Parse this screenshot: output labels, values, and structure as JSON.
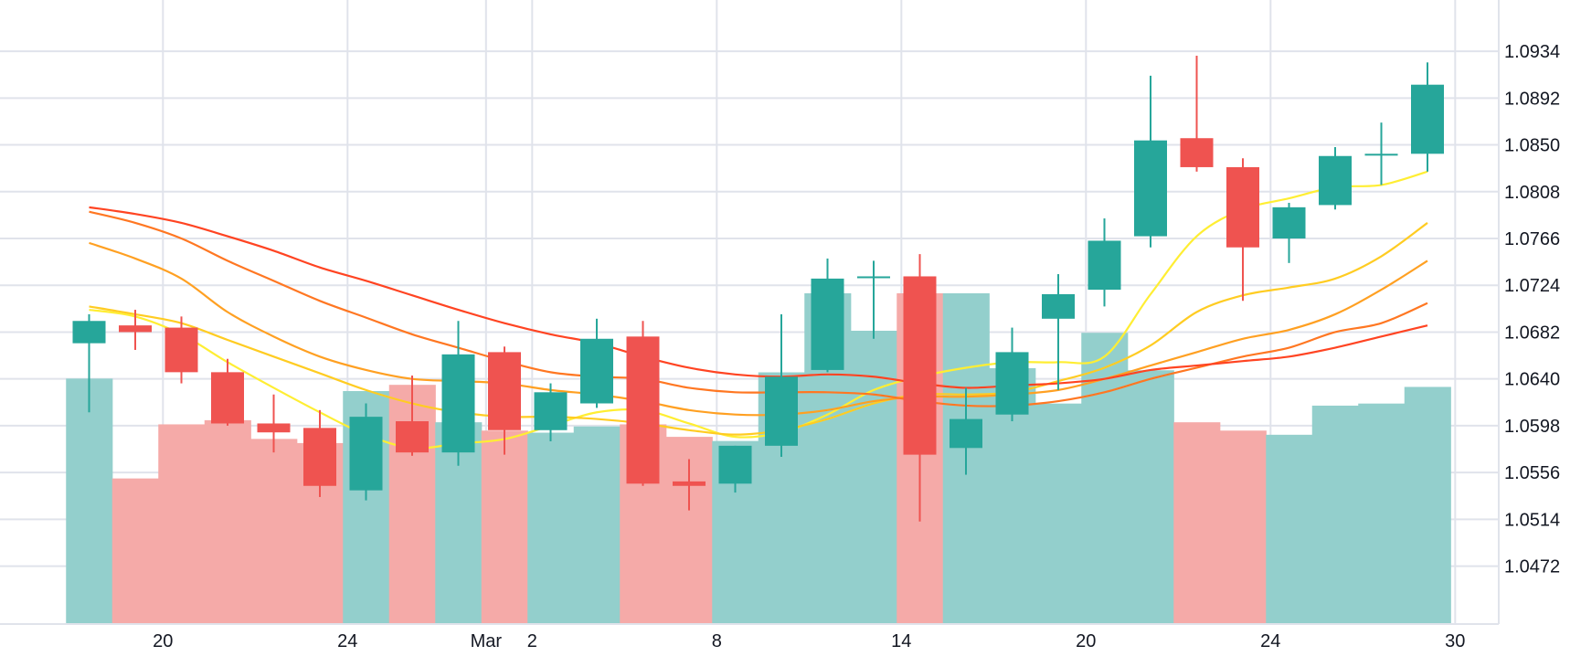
{
  "chart_data": {
    "type": "candlestick",
    "title": "",
    "xlabel": "",
    "ylabel": "",
    "y_range": [
      1.042,
      1.098
    ],
    "y_ticks": [
      "1.0934",
      "1.0892",
      "1.0850",
      "1.0808",
      "1.0766",
      "1.0724",
      "1.0682",
      "1.0640",
      "1.0598",
      "1.0556",
      "1.0514",
      "1.0472"
    ],
    "x_ticks": [
      {
        "label": "20",
        "index": 1.6
      },
      {
        "label": "24",
        "index": 5.6
      },
      {
        "label": "Mar",
        "index": 8.6
      },
      {
        "label": "2",
        "index": 9.6
      },
      {
        "label": "8",
        "index": 13.6
      },
      {
        "label": "14",
        "index": 17.6
      },
      {
        "label": "20",
        "index": 21.6
      },
      {
        "label": "24",
        "index": 25.6
      },
      {
        "label": "30",
        "index": 29.6
      }
    ],
    "grid": true,
    "colors": {
      "up": "#26a69a",
      "down": "#ef5350",
      "volume_up": "#93cfcc",
      "volume_down": "#f5aaa8",
      "grid": "#e0e3eb"
    },
    "candles": [
      {
        "open": 1.0672,
        "high": 1.0698,
        "low": 1.061,
        "close": 1.0692
      },
      {
        "open": 1.0688,
        "high": 1.0702,
        "low": 1.0666,
        "close": 1.0682
      },
      {
        "open": 1.0686,
        "high": 1.0696,
        "low": 1.0636,
        "close": 1.0646
      },
      {
        "open": 1.0646,
        "high": 1.0658,
        "low": 1.0598,
        "close": 1.06
      },
      {
        "open": 1.06,
        "high": 1.0626,
        "low": 1.0574,
        "close": 1.0592
      },
      {
        "open": 1.0596,
        "high": 1.0612,
        "low": 1.0534,
        "close": 1.0544
      },
      {
        "open": 1.054,
        "high": 1.0618,
        "low": 1.0531,
        "close": 1.0606
      },
      {
        "open": 1.0602,
        "high": 1.0643,
        "low": 1.0571,
        "close": 1.0574
      },
      {
        "open": 1.0574,
        "high": 1.0692,
        "low": 1.0562,
        "close": 1.0662
      },
      {
        "open": 1.0664,
        "high": 1.0669,
        "low": 1.0572,
        "close": 1.0594
      },
      {
        "open": 1.0594,
        "high": 1.0636,
        "low": 1.0584,
        "close": 1.0628
      },
      {
        "open": 1.0618,
        "high": 1.0694,
        "low": 1.0614,
        "close": 1.0676
      },
      {
        "open": 1.0678,
        "high": 1.0692,
        "low": 1.0544,
        "close": 1.0546
      },
      {
        "open": 1.0548,
        "high": 1.0568,
        "low": 1.0522,
        "close": 1.0544
      },
      {
        "open": 1.0546,
        "high": 1.058,
        "low": 1.0538,
        "close": 1.058
      },
      {
        "open": 1.058,
        "high": 1.0698,
        "low": 1.057,
        "close": 1.0642
      },
      {
        "open": 1.0648,
        "high": 1.0748,
        "low": 1.0646,
        "close": 1.073
      },
      {
        "open": 1.0732,
        "high": 1.0746,
        "low": 1.0676,
        "close": 1.0732
      },
      {
        "open": 1.0732,
        "high": 1.0752,
        "low": 1.0512,
        "close": 1.0572
      },
      {
        "open": 1.0578,
        "high": 1.0632,
        "low": 1.0554,
        "close": 1.0604
      },
      {
        "open": 1.0608,
        "high": 1.0686,
        "low": 1.0602,
        "close": 1.0664
      },
      {
        "open": 1.0694,
        "high": 1.0734,
        "low": 1.063,
        "close": 1.0716
      },
      {
        "open": 1.072,
        "high": 1.0784,
        "low": 1.0705,
        "close": 1.0764
      },
      {
        "open": 1.0768,
        "high": 1.0912,
        "low": 1.0758,
        "close": 1.0854
      },
      {
        "open": 1.0856,
        "high": 1.093,
        "low": 1.0826,
        "close": 1.083
      },
      {
        "open": 1.083,
        "high": 1.0838,
        "low": 1.071,
        "close": 1.0758
      },
      {
        "open": 1.0766,
        "high": 1.0798,
        "low": 1.0744,
        "close": 1.0794
      },
      {
        "open": 1.0796,
        "high": 1.0848,
        "low": 1.0792,
        "close": 1.084
      },
      {
        "open": 1.0842,
        "high": 1.087,
        "low": 1.0814,
        "close": 1.0842
      },
      {
        "open": 1.0842,
        "high": 1.0924,
        "low": 1.0826,
        "close": 1.0904
      }
    ],
    "volume": {
      "range": [
        0,
        300
      ],
      "values": [
        118,
        70,
        96,
        98,
        89,
        87,
        112,
        115,
        97,
        93,
        92,
        95,
        96,
        90,
        88,
        121,
        159,
        141,
        159,
        159,
        123,
        106,
        140,
        122,
        97,
        93,
        91,
        105,
        106,
        114
      ]
    },
    "moving_averages": [
      {
        "color": "#ffee33",
        "values": [
          1.0702,
          1.0696,
          1.068,
          1.0655,
          1.0632,
          1.061,
          1.059,
          1.0578,
          1.0582,
          1.0586,
          1.0598,
          1.061,
          1.0612,
          1.06,
          1.0588,
          1.0592,
          1.0608,
          1.063,
          1.0642,
          1.065,
          1.0655,
          1.0655,
          1.066,
          1.0716,
          1.0768,
          1.0792,
          1.0802,
          1.0812,
          1.0814,
          1.0826
        ]
      },
      {
        "color": "#ffcc22",
        "values": [
          1.0705,
          1.0698,
          1.069,
          1.0675,
          1.066,
          1.0645,
          1.063,
          1.0618,
          1.061,
          1.0606,
          1.0606,
          1.0604,
          1.06,
          1.0594,
          1.059,
          1.0594,
          1.0604,
          1.0618,
          1.0626,
          1.0626,
          1.0628,
          1.0638,
          1.065,
          1.067,
          1.07,
          1.0715,
          1.0722,
          1.073,
          1.075,
          1.078
        ]
      },
      {
        "color": "#ffa022",
        "values": [
          1.0762,
          1.0748,
          1.073,
          1.07,
          1.0678,
          1.066,
          1.0648,
          1.064,
          1.0638,
          1.0636,
          1.063,
          1.0626,
          1.062,
          1.0612,
          1.0608,
          1.0608,
          1.0612,
          1.062,
          1.0624,
          1.0624,
          1.0626,
          1.063,
          1.064,
          1.0652,
          1.0664,
          1.0676,
          1.0684,
          1.0698,
          1.072,
          1.0746
        ]
      },
      {
        "color": "#ff7722",
        "values": [
          1.079,
          1.078,
          1.0766,
          1.0746,
          1.0728,
          1.071,
          1.0695,
          1.068,
          1.0668,
          1.0656,
          1.0646,
          1.0642,
          1.064,
          1.0632,
          1.0628,
          1.0628,
          1.0628,
          1.0626,
          1.062,
          1.0616,
          1.0616,
          1.062,
          1.0628,
          1.064,
          1.065,
          1.066,
          1.0668,
          1.0682,
          1.069,
          1.0708
        ]
      },
      {
        "color": "#ff4422",
        "values": [
          1.0794,
          1.0788,
          1.078,
          1.0768,
          1.0755,
          1.074,
          1.0728,
          1.0715,
          1.0702,
          1.069,
          1.068,
          1.0672,
          1.066,
          1.065,
          1.0644,
          1.0642,
          1.0644,
          1.0642,
          1.0636,
          1.0632,
          1.0634,
          1.0636,
          1.064,
          1.0648,
          1.0652,
          1.0656,
          1.066,
          1.0668,
          1.0678,
          1.0688
        ]
      }
    ]
  }
}
